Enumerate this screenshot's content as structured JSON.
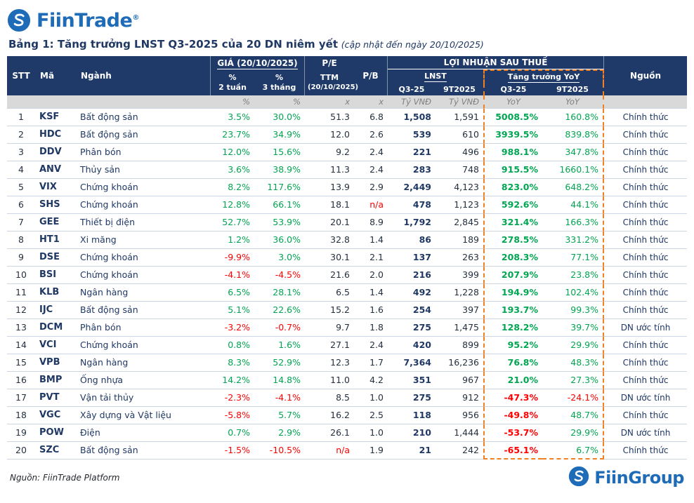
{
  "brand": {
    "name": "FiinTrade",
    "reg": "®",
    "footer_name": "FiinGroup"
  },
  "title": {
    "text": "Bảng 1: Tăng trưởng LNST Q3-2025 của 20 DN niêm yết",
    "note": "(cập nhật đến ngày 20/10/2025)"
  },
  "labels": {
    "stt": "STT",
    "ma": "Mã",
    "nganh": "Ngành",
    "gia_group": "GIÁ (20/10/2025)",
    "pct": "%",
    "w2": "2 tuần",
    "m3": "3 tháng",
    "pe": "P/E",
    "pe_ttm": "TTM",
    "pe_date": "(20/10/2025)",
    "pb": "P/B",
    "profit_group": "LỢI NHUẬN SAU THUẾ",
    "lnst": "LNST",
    "growth": "Tăng trưởng YoY",
    "q3": "Q3-25",
    "t9": "9T2025",
    "nguon": "Nguồn",
    "unit_pct": "%",
    "unit_x": "x",
    "unit_ty": "Tỷ VNĐ",
    "unit_yoy": "YoY"
  },
  "colors": {
    "header_navy": "#1F3A68",
    "positive": "#00A651",
    "negative": "#FF0000",
    "highlight_dashed": "#F08122",
    "brand_blue": "#1E6BB8",
    "units_bg": "#D9D9D9"
  },
  "chart_data": {
    "type": "table",
    "title": "Bảng 1: Tăng trưởng LNST Q3-2025 của 20 DN niêm yết (cập nhật đến ngày 20/10/2025)",
    "columns": [
      "STT",
      "Mã",
      "Ngành",
      "Giá % 2 tuần",
      "Giá % 3 tháng",
      "P/E TTM (20/10/2025) (x)",
      "P/B (x)",
      "LNST Q3-25 (Tỷ VNĐ)",
      "LNST 9T2025 (Tỷ VNĐ)",
      "Tăng trưởng YoY Q3-25",
      "Tăng trưởng YoY 9T2025",
      "Nguồn"
    ],
    "highlight": "Tăng trưởng YoY columns outlined with orange dashed box",
    "rows": [
      {
        "stt": "1",
        "ma": "KSF",
        "nganh": "Bất động sản",
        "p2w": "3.5%",
        "p3m": "30.0%",
        "pe": "51.3",
        "pb": "6.8",
        "lnst_q3": "1,508",
        "lnst_9t": "1,591",
        "yoy_q3": "5008.5%",
        "yoy_9t": "160.8%",
        "nguon": "Chính thức"
      },
      {
        "stt": "2",
        "ma": "HDC",
        "nganh": "Bất động sản",
        "p2w": "23.7%",
        "p3m": "34.9%",
        "pe": "12.0",
        "pb": "2.6",
        "lnst_q3": "539",
        "lnst_9t": "610",
        "yoy_q3": "3939.5%",
        "yoy_9t": "839.8%",
        "nguon": "Chính thức"
      },
      {
        "stt": "3",
        "ma": "DDV",
        "nganh": "Phân bón",
        "p2w": "12.0%",
        "p3m": "15.6%",
        "pe": "9.2",
        "pb": "2.4",
        "lnst_q3": "221",
        "lnst_9t": "496",
        "yoy_q3": "988.1%",
        "yoy_9t": "347.8%",
        "nguon": "Chính thức"
      },
      {
        "stt": "4",
        "ma": "ANV",
        "nganh": "Thủy sản",
        "p2w": "3.6%",
        "p3m": "38.9%",
        "pe": "11.3",
        "pb": "2.4",
        "lnst_q3": "283",
        "lnst_9t": "748",
        "yoy_q3": "915.5%",
        "yoy_9t": "1660.1%",
        "nguon": "Chính thức"
      },
      {
        "stt": "5",
        "ma": "VIX",
        "nganh": "Chứng khoán",
        "p2w": "8.2%",
        "p3m": "117.6%",
        "pe": "13.9",
        "pb": "2.9",
        "lnst_q3": "2,449",
        "lnst_9t": "4,123",
        "yoy_q3": "823.0%",
        "yoy_9t": "648.2%",
        "nguon": "Chính thức"
      },
      {
        "stt": "6",
        "ma": "SHS",
        "nganh": "Chứng khoán",
        "p2w": "12.8%",
        "p3m": "66.1%",
        "pe": "18.1",
        "pb": "n/a",
        "lnst_q3": "478",
        "lnst_9t": "1,123",
        "yoy_q3": "592.6%",
        "yoy_9t": "44.1%",
        "nguon": "Chính thức"
      },
      {
        "stt": "7",
        "ma": "GEE",
        "nganh": "Thiết bị điện",
        "p2w": "52.7%",
        "p3m": "53.9%",
        "pe": "20.1",
        "pb": "8.9",
        "lnst_q3": "1,792",
        "lnst_9t": "2,845",
        "yoy_q3": "321.4%",
        "yoy_9t": "166.3%",
        "nguon": "Chính thức"
      },
      {
        "stt": "8",
        "ma": "HT1",
        "nganh": "Xi măng",
        "p2w": "1.2%",
        "p3m": "36.0%",
        "pe": "32.8",
        "pb": "1.4",
        "lnst_q3": "86",
        "lnst_9t": "189",
        "yoy_q3": "278.5%",
        "yoy_9t": "331.2%",
        "nguon": "Chính thức"
      },
      {
        "stt": "9",
        "ma": "DSE",
        "nganh": "Chứng khoán",
        "p2w": "-9.9%",
        "p3m": "3.0%",
        "pe": "30.1",
        "pb": "2.1",
        "lnst_q3": "137",
        "lnst_9t": "263",
        "yoy_q3": "208.3%",
        "yoy_9t": "77.1%",
        "nguon": "Chính thức"
      },
      {
        "stt": "10",
        "ma": "BSI",
        "nganh": "Chứng khoán",
        "p2w": "-4.1%",
        "p3m": "-4.5%",
        "pe": "21.6",
        "pb": "2.0",
        "lnst_q3": "216",
        "lnst_9t": "399",
        "yoy_q3": "207.9%",
        "yoy_9t": "23.8%",
        "nguon": "Chính thức"
      },
      {
        "stt": "11",
        "ma": "KLB",
        "nganh": "Ngân hàng",
        "p2w": "6.5%",
        "p3m": "28.1%",
        "pe": "6.5",
        "pb": "1.4",
        "lnst_q3": "492",
        "lnst_9t": "1,228",
        "yoy_q3": "194.9%",
        "yoy_9t": "102.4%",
        "nguon": "Chính thức"
      },
      {
        "stt": "12",
        "ma": "IJC",
        "nganh": "Bất động sản",
        "p2w": "5.1%",
        "p3m": "22.6%",
        "pe": "15.2",
        "pb": "1.6",
        "lnst_q3": "254",
        "lnst_9t": "397",
        "yoy_q3": "193.7%",
        "yoy_9t": "99.3%",
        "nguon": "Chính thức"
      },
      {
        "stt": "13",
        "ma": "DCM",
        "nganh": "Phân bón",
        "p2w": "-3.2%",
        "p3m": "-0.7%",
        "pe": "9.7",
        "pb": "1.8",
        "lnst_q3": "275",
        "lnst_9t": "1,475",
        "yoy_q3": "128.2%",
        "yoy_9t": "39.7%",
        "nguon": "DN ước tính"
      },
      {
        "stt": "14",
        "ma": "VCI",
        "nganh": "Chứng khoán",
        "p2w": "0.8%",
        "p3m": "1.6%",
        "pe": "27.1",
        "pb": "2.4",
        "lnst_q3": "420",
        "lnst_9t": "899",
        "yoy_q3": "95.2%",
        "yoy_9t": "29.9%",
        "nguon": "Chính thức"
      },
      {
        "stt": "15",
        "ma": "VPB",
        "nganh": "Ngân hàng",
        "p2w": "8.3%",
        "p3m": "52.9%",
        "pe": "12.3",
        "pb": "1.7",
        "lnst_q3": "7,364",
        "lnst_9t": "16,236",
        "yoy_q3": "76.8%",
        "yoy_9t": "48.3%",
        "nguon": "Chính thức"
      },
      {
        "stt": "16",
        "ma": "BMP",
        "nganh": "Ống nhựa",
        "p2w": "14.2%",
        "p3m": "14.8%",
        "pe": "11.0",
        "pb": "4.2",
        "lnst_q3": "351",
        "lnst_9t": "967",
        "yoy_q3": "21.0%",
        "yoy_9t": "27.3%",
        "nguon": "Chính thức"
      },
      {
        "stt": "17",
        "ma": "PVT",
        "nganh": "Vận tải thủy",
        "p2w": "-2.3%",
        "p3m": "-4.1%",
        "pe": "8.5",
        "pb": "1.0",
        "lnst_q3": "275",
        "lnst_9t": "912",
        "yoy_q3": "-47.3%",
        "yoy_9t": "-24.1%",
        "nguon": "DN ước tính"
      },
      {
        "stt": "18",
        "ma": "VGC",
        "nganh": "Xây dựng và Vật liệu",
        "p2w": "-5.8%",
        "p3m": "5.7%",
        "pe": "16.2",
        "pb": "2.5",
        "lnst_q3": "118",
        "lnst_9t": "956",
        "yoy_q3": "-49.8%",
        "yoy_9t": "48.7%",
        "nguon": "Chính thức"
      },
      {
        "stt": "19",
        "ma": "POW",
        "nganh": "Điện",
        "p2w": "0.7%",
        "p3m": "2.9%",
        "pe": "26.1",
        "pb": "1.0",
        "lnst_q3": "210",
        "lnst_9t": "1,444",
        "yoy_q3": "-53.7%",
        "yoy_9t": "29.9%",
        "nguon": "DN ước tính"
      },
      {
        "stt": "20",
        "ma": "SZC",
        "nganh": "Bất động sản",
        "p2w": "-1.5%",
        "p3m": "-10.5%",
        "pe": "n/a",
        "pb": "1.9",
        "lnst_q3": "21",
        "lnst_9t": "242",
        "yoy_q3": "-65.1%",
        "yoy_9t": "6.7%",
        "nguon": "Chính thức"
      }
    ]
  },
  "footer": {
    "source": "Nguồn: FiinTrade Platform"
  }
}
